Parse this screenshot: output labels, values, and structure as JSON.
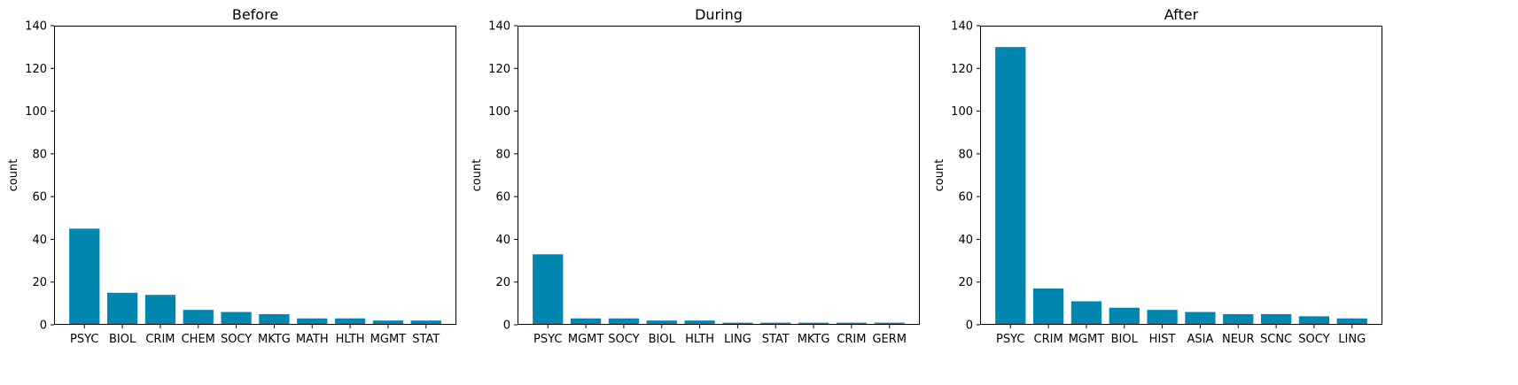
{
  "colors": {
    "bar": "#0086AF",
    "axes": "#000000",
    "background": "#FFFFFF"
  },
  "chart_data": [
    {
      "type": "bar",
      "title": "Before",
      "xlabel": "",
      "ylabel": "count",
      "ylim": [
        0,
        140
      ],
      "yticks": [
        0,
        20,
        40,
        60,
        80,
        100,
        120,
        140
      ],
      "grid": false,
      "categories": [
        "PSYC",
        "BIOL",
        "CRIM",
        "CHEM",
        "SOCY",
        "MKTG",
        "MATH",
        "HLTH",
        "MGMT",
        "STAT"
      ],
      "values": [
        45,
        15,
        14,
        7,
        6,
        5,
        3,
        3,
        2,
        2
      ]
    },
    {
      "type": "bar",
      "title": "During",
      "xlabel": "",
      "ylabel": "count",
      "ylim": [
        0,
        140
      ],
      "yticks": [
        0,
        20,
        40,
        60,
        80,
        100,
        120,
        140
      ],
      "grid": false,
      "categories": [
        "PSYC",
        "MGMT",
        "SOCY",
        "BIOL",
        "HLTH",
        "LING",
        "STAT",
        "MKTG",
        "CRIM",
        "GERM"
      ],
      "values": [
        33,
        3,
        3,
        2,
        2,
        1,
        1,
        1,
        1,
        1
      ]
    },
    {
      "type": "bar",
      "title": "After",
      "xlabel": "",
      "ylabel": "count",
      "ylim": [
        0,
        140
      ],
      "yticks": [
        0,
        20,
        40,
        60,
        80,
        100,
        120,
        140
      ],
      "grid": false,
      "categories": [
        "PSYC",
        "CRIM",
        "MGMT",
        "BIOL",
        "HIST",
        "ASIA",
        "NEUR",
        "SCNC",
        "SOCY",
        "LING"
      ],
      "values": [
        130,
        17,
        11,
        8,
        7,
        6,
        5,
        5,
        4,
        3
      ]
    }
  ]
}
